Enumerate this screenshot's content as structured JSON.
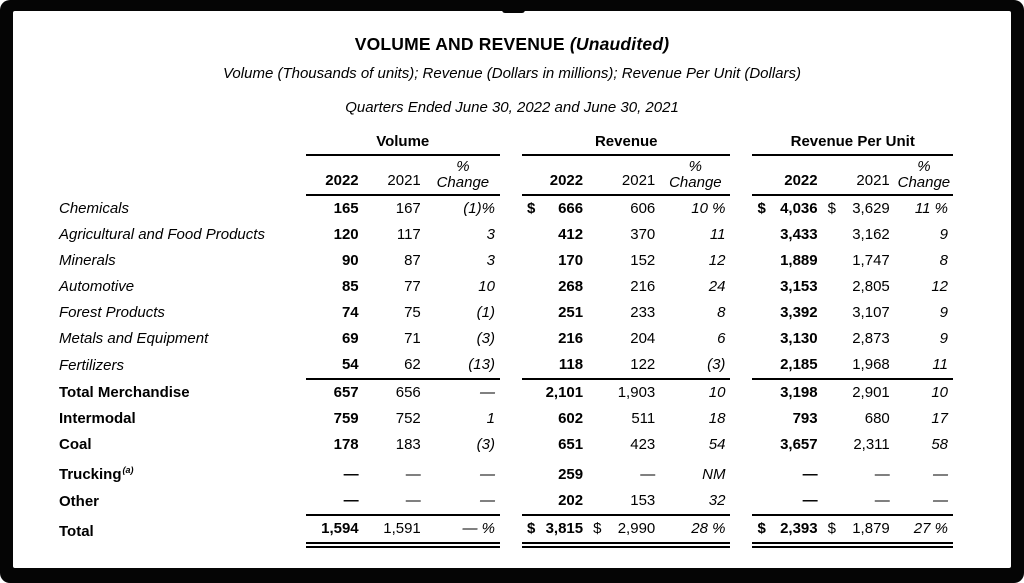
{
  "title": {
    "main": "VOLUME AND REVENUE",
    "suffix": "(Unaudited)"
  },
  "subtitle": "Volume (Thousands of units); Revenue (Dollars in millions); Revenue Per Unit (Dollars)",
  "period_line": "Quarters Ended June 30, 2022 and June 30, 2021",
  "table": {
    "groups": [
      {
        "label": "Volume"
      },
      {
        "label": "Revenue"
      },
      {
        "label": "Revenue Per Unit"
      }
    ],
    "year_headers": {
      "y2022": "2022",
      "y2021": "2021",
      "pct_line1": "%",
      "pct_line2": "Change"
    },
    "rows": [
      {
        "label": "Chemicals",
        "emphasis": "item",
        "vol": [
          "165",
          "167",
          "(1)%"
        ],
        "rev": [
          "$",
          "666",
          "",
          "606",
          "10 %"
        ],
        "rpu": [
          "$",
          "4,036",
          "$",
          "3,629",
          "11 %"
        ]
      },
      {
        "label": "Agricultural and Food Products",
        "emphasis": "item",
        "vol": [
          "120",
          "117",
          "3"
        ],
        "rev": [
          "",
          "412",
          "",
          "370",
          "11"
        ],
        "rpu": [
          "",
          "3,433",
          "",
          "3,162",
          "9"
        ]
      },
      {
        "label": "Minerals",
        "emphasis": "item",
        "vol": [
          "90",
          "87",
          "3"
        ],
        "rev": [
          "",
          "170",
          "",
          "152",
          "12"
        ],
        "rpu": [
          "",
          "1,889",
          "",
          "1,747",
          "8"
        ]
      },
      {
        "label": "Automotive",
        "emphasis": "item",
        "vol": [
          "85",
          "77",
          "10"
        ],
        "rev": [
          "",
          "268",
          "",
          "216",
          "24"
        ],
        "rpu": [
          "",
          "3,153",
          "",
          "2,805",
          "12"
        ]
      },
      {
        "label": "Forest Products",
        "emphasis": "item",
        "vol": [
          "74",
          "75",
          "(1)"
        ],
        "rev": [
          "",
          "251",
          "",
          "233",
          "8"
        ],
        "rpu": [
          "",
          "3,392",
          "",
          "3,107",
          "9"
        ]
      },
      {
        "label": "Metals and Equipment",
        "emphasis": "item",
        "vol": [
          "69",
          "71",
          "(3)"
        ],
        "rev": [
          "",
          "216",
          "",
          "204",
          "6"
        ],
        "rpu": [
          "",
          "3,130",
          "",
          "2,873",
          "9"
        ]
      },
      {
        "label": "Fertilizers",
        "emphasis": "item",
        "vol": [
          "54",
          "62",
          "(13)"
        ],
        "rev": [
          "",
          "118",
          "",
          "122",
          "(3)"
        ],
        "rpu": [
          "",
          "2,185",
          "",
          "1,968",
          "11"
        ]
      },
      {
        "label": "Total Merchandise",
        "emphasis": "total",
        "rule_above": true,
        "vol": [
          "657",
          "656",
          "—"
        ],
        "rev": [
          "",
          "2,101",
          "",
          "1,903",
          "10"
        ],
        "rpu": [
          "",
          "3,198",
          "",
          "2,901",
          "10"
        ]
      },
      {
        "label": "Intermodal",
        "emphasis": "total",
        "vol": [
          "759",
          "752",
          "1"
        ],
        "rev": [
          "",
          "602",
          "",
          "511",
          "18"
        ],
        "rpu": [
          "",
          "793",
          "",
          "680",
          "17"
        ]
      },
      {
        "label": "Coal",
        "emphasis": "total",
        "vol": [
          "178",
          "183",
          "(3)"
        ],
        "rev": [
          "",
          "651",
          "",
          "423",
          "54"
        ],
        "rpu": [
          "",
          "3,657",
          "",
          "2,311",
          "58"
        ]
      },
      {
        "label": "Trucking",
        "sup": "(a)",
        "emphasis": "total",
        "vol": [
          "—",
          "—",
          "—"
        ],
        "rev": [
          "",
          "259",
          "",
          "—",
          "NM"
        ],
        "rpu": [
          "",
          "—",
          "",
          "—",
          "—"
        ]
      },
      {
        "label": "Other",
        "emphasis": "total",
        "vol": [
          "—",
          "—",
          "—"
        ],
        "rev": [
          "",
          "202",
          "",
          "153",
          "32"
        ],
        "rpu": [
          "",
          "—",
          "",
          "—",
          "—"
        ]
      },
      {
        "label": "Total",
        "emphasis": "total",
        "rule_above": true,
        "double_rule_below": true,
        "vol": [
          "1,594",
          "1,591",
          "— %"
        ],
        "rev": [
          "$",
          "3,815",
          "$",
          "2,990",
          "28 %"
        ],
        "rpu": [
          "$",
          "2,393",
          "$",
          "1,879",
          "27 %"
        ]
      }
    ]
  }
}
